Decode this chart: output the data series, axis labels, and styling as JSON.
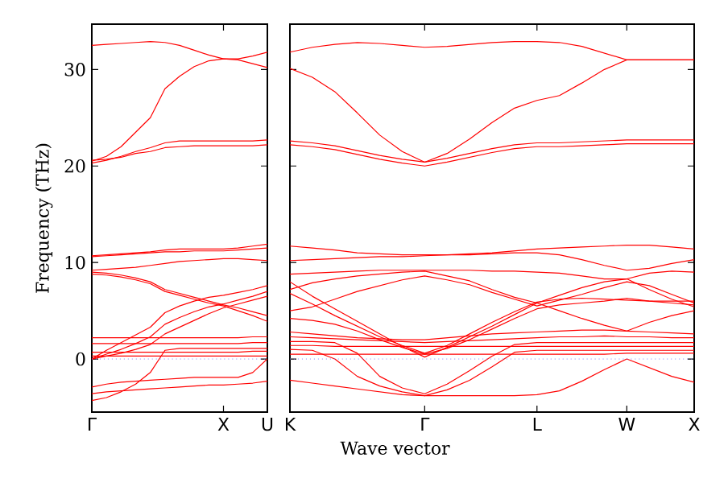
{
  "chart_data": [
    {
      "type": "line",
      "ylabel": "Frequency (THz)",
      "categories": [
        "Γ",
        null,
        null,
        null,
        null,
        null,
        null,
        null,
        null,
        "X",
        null,
        null,
        "U"
      ],
      "ylim": [
        -5.5,
        34.7
      ],
      "yticks": [
        0,
        10,
        20,
        30
      ],
      "ref_lines": [
        {
          "axis": "y",
          "value": 0,
          "color": "#8080ff",
          "line_style": "dotted"
        }
      ],
      "series": [
        {
          "color": "#ff0000",
          "values": [
            32.5,
            32.6,
            32.7,
            32.8,
            32.9,
            32.8,
            32.5,
            32.0,
            31.5,
            31.1,
            31.1,
            31.4,
            31.8
          ]
        },
        {
          "color": "#ff0000",
          "values": [
            20.5,
            21.0,
            22.0,
            23.5,
            25.0,
            28.0,
            29.3,
            30.3,
            30.9,
            31.1,
            31.0,
            30.6,
            30.2
          ]
        },
        {
          "color": "#ff0000",
          "values": [
            20.3,
            20.6,
            21.0,
            21.5,
            21.9,
            22.4,
            22.6,
            22.6,
            22.6,
            22.6,
            22.6,
            22.6,
            22.7
          ]
        },
        {
          "color": "#ff0000",
          "values": [
            20.6,
            20.7,
            20.9,
            21.3,
            21.5,
            21.9,
            22.0,
            22.1,
            22.1,
            22.1,
            22.1,
            22.1,
            22.2
          ]
        },
        {
          "color": "#ff0000",
          "values": [
            10.7,
            10.8,
            10.9,
            11.0,
            11.1,
            11.3,
            11.4,
            11.4,
            11.4,
            11.4,
            11.5,
            11.7,
            11.9
          ]
        },
        {
          "color": "#ff0000",
          "values": [
            10.6,
            10.7,
            10.8,
            10.9,
            11.0,
            11.1,
            11.1,
            11.2,
            11.2,
            11.2,
            11.3,
            11.4,
            11.5
          ]
        },
        {
          "color": "#ff0000",
          "values": [
            9.2,
            9.3,
            9.4,
            9.5,
            9.7,
            9.9,
            10.1,
            10.2,
            10.3,
            10.4,
            10.4,
            10.3,
            10.2
          ]
        },
        {
          "color": "#ff0000",
          "values": [
            9.0,
            8.9,
            8.7,
            8.4,
            8.0,
            7.2,
            6.8,
            6.4,
            6.0,
            5.6,
            5.3,
            4.9,
            4.5
          ]
        },
        {
          "color": "#ff0000",
          "values": [
            8.8,
            8.7,
            8.5,
            8.2,
            7.8,
            7.0,
            6.6,
            6.2,
            5.8,
            5.5,
            5.0,
            4.5,
            3.9
          ]
        },
        {
          "color": "#ff0000",
          "values": [
            0.0,
            0.9,
            1.7,
            2.5,
            3.3,
            4.8,
            5.5,
            6.0,
            6.4,
            6.6,
            6.9,
            7.2,
            7.6
          ]
        },
        {
          "color": "#ff0000",
          "values": [
            0.0,
            0.5,
            1.0,
            1.6,
            2.3,
            3.6,
            4.3,
            4.9,
            5.4,
            5.7,
            6.1,
            6.5,
            7.0
          ]
        },
        {
          "color": "#ff0000",
          "values": [
            0.0,
            0.3,
            0.6,
            1.0,
            1.5,
            2.6,
            3.3,
            4.0,
            4.7,
            5.3,
            5.7,
            6.1,
            6.5
          ]
        },
        {
          "color": "#ff0000",
          "values": [
            2.2,
            2.2,
            2.2,
            2.2,
            2.2,
            2.2,
            2.2,
            2.2,
            2.2,
            2.2,
            2.2,
            2.3,
            2.3
          ]
        },
        {
          "color": "#ff0000",
          "values": [
            1.6,
            1.6,
            1.6,
            1.6,
            1.6,
            1.6,
            1.6,
            1.6,
            1.6,
            1.6,
            1.6,
            1.7,
            1.7
          ]
        },
        {
          "color": "#ff0000",
          "values": [
            0.7,
            0.7,
            0.7,
            0.7,
            0.7,
            0.7,
            0.7,
            0.7,
            0.7,
            0.7,
            0.7,
            0.8,
            0.8
          ]
        },
        {
          "color": "#ff0000",
          "values": [
            0.3,
            0.3,
            0.3,
            0.3,
            0.3,
            0.3,
            0.3,
            0.3,
            0.3,
            0.3,
            0.3,
            0.3,
            0.3
          ]
        },
        {
          "color": "#ff0000",
          "values": [
            -3.6,
            -3.4,
            -3.3,
            -3.2,
            -3.1,
            -3.0,
            -2.9,
            -2.8,
            -2.7,
            -2.7,
            -2.6,
            -2.5,
            -2.3
          ]
        },
        {
          "color": "#ff0000",
          "values": [
            -4.3,
            -4.0,
            -3.4,
            -2.6,
            -1.4,
            0.9,
            1.1,
            1.1,
            1.1,
            1.1,
            1.1,
            1.1,
            1.1
          ]
        },
        {
          "color": "#ff0000",
          "values": [
            -2.9,
            -2.6,
            -2.4,
            -2.3,
            -2.2,
            -2.1,
            -2.0,
            -1.9,
            -1.9,
            -1.9,
            -1.9,
            -1.4,
            0.0
          ]
        }
      ]
    },
    {
      "type": "line",
      "xlabel": "Wave vector",
      "categories": [
        "K",
        null,
        null,
        null,
        null,
        null,
        "Γ",
        null,
        null,
        null,
        null,
        "L",
        null,
        null,
        null,
        "W",
        null,
        null,
        "X"
      ],
      "ylim": [
        -5.5,
        34.7
      ],
      "yticks": [
        0,
        10,
        20,
        30
      ],
      "tick_labels": "x",
      "ref_lines": [
        {
          "axis": "y",
          "value": 0,
          "color": "#8080ff",
          "line_style": "dotted"
        }
      ],
      "series": [
        {
          "color": "#ff0000",
          "values": [
            31.8,
            32.3,
            32.6,
            32.8,
            32.7,
            32.5,
            32.3,
            32.4,
            32.6,
            32.8,
            32.9,
            32.9,
            32.8,
            32.4,
            31.7,
            31.0,
            31.0,
            31.0,
            31.0
          ]
        },
        {
          "color": "#ff0000",
          "values": [
            30.1,
            29.2,
            27.7,
            25.5,
            23.2,
            21.5,
            20.4,
            21.3,
            22.8,
            24.5,
            26.0,
            26.8,
            27.3,
            28.6,
            30.0,
            31.0,
            31.0,
            31.0,
            31.0
          ]
        },
        {
          "color": "#ff0000",
          "values": [
            22.6,
            22.4,
            22.1,
            21.6,
            21.1,
            20.7,
            20.4,
            20.8,
            21.3,
            21.8,
            22.2,
            22.4,
            22.4,
            22.5,
            22.6,
            22.7,
            22.7,
            22.7,
            22.7
          ]
        },
        {
          "color": "#ff0000",
          "values": [
            22.2,
            22.0,
            21.7,
            21.2,
            20.7,
            20.3,
            20.0,
            20.4,
            20.9,
            21.4,
            21.8,
            22.0,
            22.0,
            22.1,
            22.2,
            22.3,
            22.3,
            22.3,
            22.3
          ]
        },
        {
          "color": "#ff0000",
          "values": [
            11.7,
            11.5,
            11.3,
            11.0,
            10.9,
            10.8,
            10.8,
            10.8,
            10.9,
            11.0,
            11.2,
            11.4,
            11.5,
            11.6,
            11.7,
            11.8,
            11.8,
            11.6,
            11.4
          ]
        },
        {
          "color": "#ff0000",
          "values": [
            10.2,
            10.3,
            10.4,
            10.5,
            10.6,
            10.6,
            10.7,
            10.8,
            10.8,
            10.9,
            11.0,
            11.0,
            10.8,
            10.3,
            9.7,
            9.2,
            9.4,
            9.9,
            10.3
          ]
        },
        {
          "color": "#ff0000",
          "values": [
            8.8,
            8.9,
            9.0,
            9.1,
            9.2,
            9.2,
            9.2,
            9.2,
            9.2,
            9.1,
            9.1,
            9.0,
            8.9,
            8.6,
            8.3,
            8.3,
            8.9,
            9.1,
            9.0
          ]
        },
        {
          "color": "#ff0000",
          "values": [
            7.2,
            7.9,
            8.3,
            8.6,
            8.8,
            9.0,
            9.1,
            8.6,
            8.1,
            7.2,
            6.4,
            5.8,
            5.0,
            4.2,
            3.5,
            2.9,
            3.8,
            4.5,
            5.0
          ]
        },
        {
          "color": "#ff0000",
          "values": [
            5.0,
            5.4,
            6.2,
            7.0,
            7.6,
            8.2,
            8.6,
            8.2,
            7.7,
            6.9,
            6.2,
            5.5,
            6.1,
            6.7,
            7.4,
            8.0,
            7.6,
            6.7,
            5.8
          ]
        },
        {
          "color": "#ff0000",
          "values": [
            8.0,
            6.5,
            5.2,
            3.9,
            2.6,
            1.3,
            0.2,
            1.2,
            2.3,
            3.4,
            4.6,
            5.8,
            6.6,
            7.4,
            8.0,
            8.3,
            7.2,
            6.2,
            5.4
          ]
        },
        {
          "color": "#ff0000",
          "values": [
            6.8,
            5.7,
            4.5,
            3.4,
            2.3,
            1.4,
            0.6,
            1.4,
            2.6,
            3.8,
            4.9,
            5.9,
            6.2,
            6.3,
            6.2,
            6.1,
            6.0,
            6.0,
            6.0
          ]
        },
        {
          "color": "#ff0000",
          "values": [
            4.2,
            4.0,
            3.6,
            2.9,
            2.0,
            1.2,
            0.5,
            1.1,
            2.0,
            3.1,
            4.2,
            5.2,
            5.6,
            5.8,
            6.0,
            6.3,
            6.0,
            5.8,
            5.6
          ]
        },
        {
          "color": "#ff0000",
          "values": [
            2.8,
            2.6,
            2.4,
            2.2,
            2.1,
            2.0,
            2.0,
            2.2,
            2.4,
            2.6,
            2.7,
            2.8,
            2.9,
            3.0,
            3.0,
            2.9,
            2.8,
            2.7,
            2.6
          ]
        },
        {
          "color": "#ff0000",
          "values": [
            2.3,
            2.2,
            2.1,
            2.0,
            1.9,
            1.8,
            1.7,
            1.8,
            1.9,
            2.0,
            2.1,
            2.2,
            2.3,
            2.3,
            2.4,
            2.3,
            2.3,
            2.2,
            2.2
          ]
        },
        {
          "color": "#ff0000",
          "values": [
            1.4,
            1.4,
            1.3,
            1.3,
            1.3,
            1.3,
            1.3,
            1.3,
            1.3,
            1.3,
            1.3,
            1.3,
            1.3,
            1.3,
            1.3,
            1.3,
            1.3,
            1.3,
            1.3
          ]
        },
        {
          "color": "#ff0000",
          "values": [
            0.5,
            0.5,
            0.5,
            0.5,
            0.5,
            0.5,
            0.5,
            0.5,
            0.5,
            0.5,
            0.5,
            0.5,
            0.5,
            0.5,
            0.5,
            0.6,
            0.6,
            0.6,
            0.6
          ]
        },
        {
          "color": "#ff0000",
          "values": [
            -2.2,
            -2.5,
            -2.8,
            -3.1,
            -3.4,
            -3.7,
            -3.8,
            -3.8,
            -3.8,
            -3.8,
            -3.8,
            -3.7,
            -3.3,
            -2.3,
            -1.1,
            0.0,
            -0.9,
            -1.8,
            -2.4
          ]
        },
        {
          "color": "#ff0000",
          "values": [
            1.0,
            0.9,
            0.0,
            -1.8,
            -2.8,
            -3.4,
            -3.8,
            -3.2,
            -2.2,
            -0.8,
            0.7,
            0.9,
            0.9,
            0.9,
            0.9,
            0.9,
            0.9,
            0.9,
            0.9
          ]
        },
        {
          "color": "#ff0000",
          "values": [
            1.8,
            1.8,
            1.7,
            0.6,
            -1.8,
            -3.0,
            -3.6,
            -2.6,
            -1.2,
            0.3,
            1.5,
            1.7,
            1.7,
            1.7,
            1.7,
            1.7,
            1.7,
            1.7,
            1.7
          ]
        }
      ]
    }
  ]
}
